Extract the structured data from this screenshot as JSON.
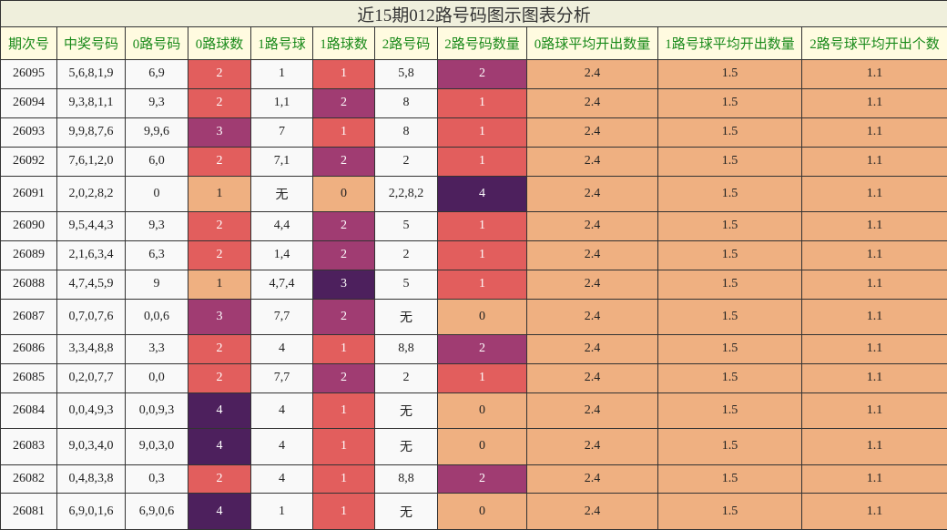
{
  "title": "近15期012路号码图示图表分析",
  "header": [
    "期次号",
    "中奖号码",
    "0路号码",
    "0路球数",
    "1路号球",
    "1路球数",
    "2路号码",
    "2路号码数量",
    "0路球平均开出数量",
    "1路号球平均开出数量",
    "2路号球平均开出个数"
  ],
  "rows": [
    [
      "26095",
      "5,6,8,1,9",
      "6,9",
      "2",
      "1",
      "1",
      "5,8",
      "2",
      "2.4",
      "1.5",
      "1.1"
    ],
    [
      "26094",
      "9,3,8,1,1",
      "9,3",
      "2",
      "1,1",
      "2",
      "8",
      "1",
      "2.4",
      "1.5",
      "1.1"
    ],
    [
      "26093",
      "9,9,8,7,6",
      "9,9,6",
      "3",
      "7",
      "1",
      "8",
      "1",
      "2.4",
      "1.5",
      "1.1"
    ],
    [
      "26092",
      "7,6,1,2,0",
      "6,0",
      "2",
      "7,1",
      "2",
      "2",
      "1",
      "2.4",
      "1.5",
      "1.1"
    ],
    [
      "26091",
      "2,0,2,8,2",
      "0",
      "1",
      "无",
      "0",
      "2,2,8,2",
      "4",
      "2.4",
      "1.5",
      "1.1"
    ],
    [
      "26090",
      "9,5,4,4,3",
      "9,3",
      "2",
      "4,4",
      "2",
      "5",
      "1",
      "2.4",
      "1.5",
      "1.1"
    ],
    [
      "26089",
      "2,1,6,3,4",
      "6,3",
      "2",
      "1,4",
      "2",
      "2",
      "1",
      "2.4",
      "1.5",
      "1.1"
    ],
    [
      "26088",
      "4,7,4,5,9",
      "9",
      "1",
      "4,7,4",
      "3",
      "5",
      "1",
      "2.4",
      "1.5",
      "1.1"
    ],
    [
      "26087",
      "0,7,0,7,6",
      "0,0,6",
      "3",
      "7,7",
      "2",
      "无",
      "0",
      "2.4",
      "1.5",
      "1.1"
    ],
    [
      "26086",
      "3,3,4,8,8",
      "3,3",
      "2",
      "4",
      "1",
      "8,8",
      "2",
      "2.4",
      "1.5",
      "1.1"
    ],
    [
      "26085",
      "0,2,0,7,7",
      "0,0",
      "2",
      "7,7",
      "2",
      "2",
      "1",
      "2.4",
      "1.5",
      "1.1"
    ],
    [
      "26084",
      "0,0,4,9,3",
      "0,0,9,3",
      "4",
      "4",
      "1",
      "无",
      "0",
      "2.4",
      "1.5",
      "1.1"
    ],
    [
      "26083",
      "9,0,3,4,0",
      "9,0,3,0",
      "4",
      "4",
      "1",
      "无",
      "0",
      "2.4",
      "1.5",
      "1.1"
    ],
    [
      "26082",
      "0,4,8,3,8",
      "0,3",
      "2",
      "4",
      "1",
      "8,8",
      "2",
      "2.4",
      "1.5",
      "1.1"
    ],
    [
      "26081",
      "6,9,0,1,6",
      "6,9,0,6",
      "4",
      "1",
      "1",
      "无",
      "0",
      "2.4",
      "1.5",
      "1.1"
    ]
  ],
  "heat_palette": [
    "#efb081",
    "#e25e5d",
    "#a03c72",
    "#4d205d"
  ],
  "average_color": "#efb081"
}
